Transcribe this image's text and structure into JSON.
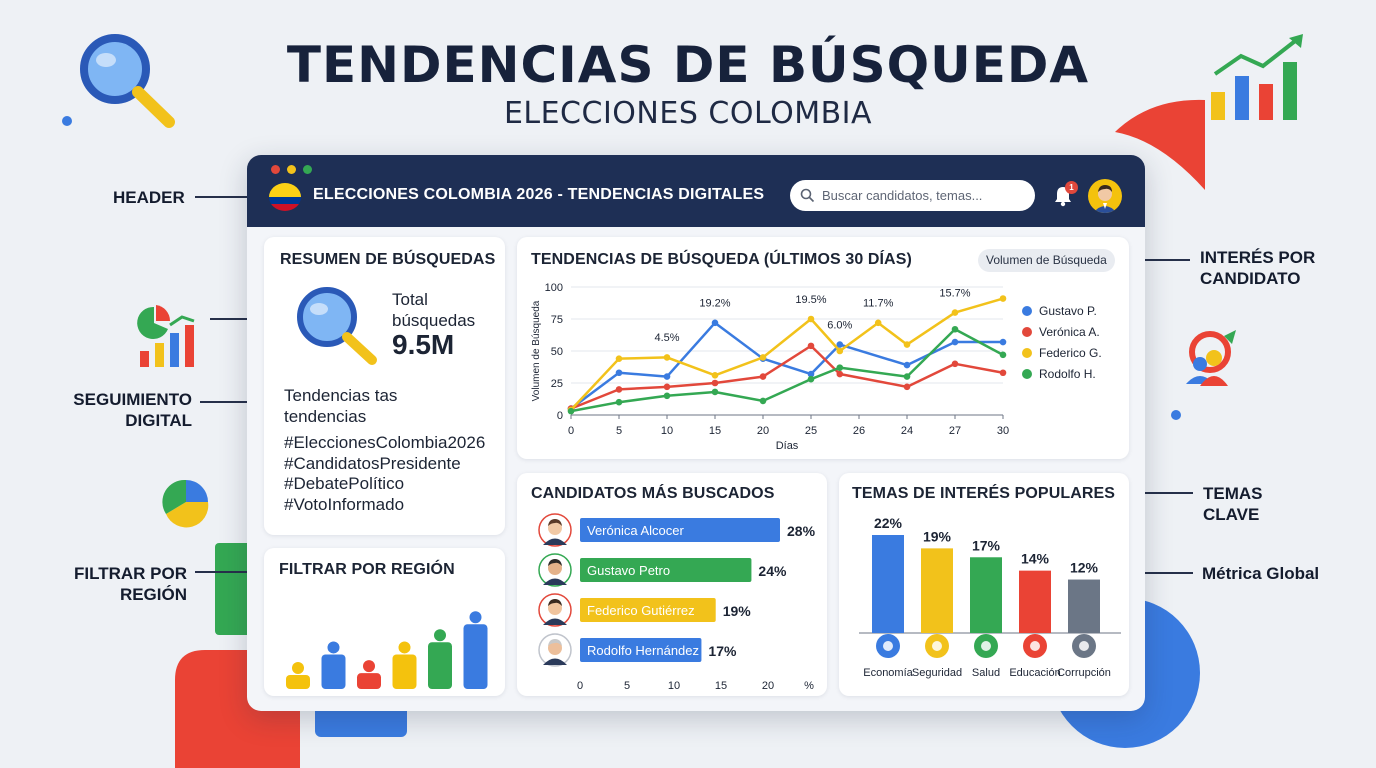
{
  "hero": {
    "title": "TENDENCIAS DE BÚSQUEDA",
    "subtitle": "ELECCIONES COLOMBIA"
  },
  "callouts": {
    "header": "HEADER",
    "seguimiento": [
      "SEGUIMIENTO",
      "DIGITAL"
    ],
    "filtrar": [
      "FILTRAR POR",
      "REGIÓN"
    ],
    "interes": [
      "INTERÉS POR",
      "CANDIDATO"
    ],
    "temas": [
      "TEMAS",
      "CLAVE"
    ],
    "metrica": "Métrica Global"
  },
  "header": {
    "title": "ELECCIONES COLOMBIA 2026 - TENDENCIAS DIGITALES",
    "search_placeholder": "Buscar candidatos, temas...",
    "notification_count": "1"
  },
  "summary": {
    "title": "RESUMEN DE BÚSQUEDAS",
    "total_label_1": "Total",
    "total_label_2": "búsquedas",
    "total_value": "9.5M",
    "trends_label_1": "Tendencias tas",
    "trends_label_2": "tendencias",
    "hashtags": [
      "#EleccionesColombia2026",
      "#CandidatosPresidente",
      "#DebatePolítico",
      "#VotoInformado"
    ]
  },
  "region": {
    "title": "FILTRAR POR REGIÓN",
    "bars": [
      {
        "level": 0.18,
        "color": "#f4c20d"
      },
      {
        "level": 0.48,
        "color": "#3a7be0"
      },
      {
        "level": 0.22,
        "color": "#ea4335"
      },
      {
        "level": 0.48,
        "color": "#f4c20d"
      },
      {
        "level": 0.65,
        "color": "#34a853"
      },
      {
        "level": 0.9,
        "color": "#3a7be0"
      }
    ]
  },
  "colors": {
    "blue": "#3a7be0",
    "red": "#e2483b",
    "yellow": "#f2c21b",
    "green": "#34a853",
    "gray": "#6b7686",
    "navy": "#1e2f55"
  },
  "chart_data": [
    {
      "type": "line",
      "title": "TENDENCIAS DE BÚSQUEDA (ÚLTIMOS 30 DÍAS)",
      "pill": "Volumen de Búsqueda",
      "xlabel": "Días",
      "ylabel": "Volumen de Búsqueda",
      "x": [
        0,
        5,
        10,
        15,
        20,
        25,
        30
      ],
      "x_ticks": [
        "0",
        "5",
        "10",
        "15",
        "20",
        "25",
        "26",
        "24",
        "27",
        "30"
      ],
      "ylim": [
        0,
        100
      ],
      "y_ticks": [
        0,
        25,
        50,
        75,
        100
      ],
      "legend_position": "right",
      "series": [
        {
          "name": "Gustavo P.",
          "color": "#3a7be0",
          "points": [
            [
              0,
              5
            ],
            [
              5,
              33
            ],
            [
              10,
              30
            ],
            [
              15,
              72
            ],
            [
              20,
              44
            ],
            [
              25,
              32
            ],
            [
              28,
              55
            ],
            [
              35,
              39
            ],
            [
              40,
              57
            ],
            [
              45,
              57
            ]
          ]
        },
        {
          "name": "Verónica A.",
          "color": "#e2483b",
          "points": [
            [
              0,
              5
            ],
            [
              5,
              20
            ],
            [
              10,
              22
            ],
            [
              15,
              25
            ],
            [
              20,
              30
            ],
            [
              25,
              54
            ],
            [
              28,
              32
            ],
            [
              35,
              22
            ],
            [
              40,
              40
            ],
            [
              45,
              33
            ]
          ]
        },
        {
          "name": "Federico G.",
          "color": "#f2c21b",
          "points": [
            [
              0,
              4
            ],
            [
              5,
              44
            ],
            [
              10,
              45
            ],
            [
              15,
              31
            ],
            [
              20,
              45
            ],
            [
              25,
              75
            ],
            [
              28,
              50
            ],
            [
              32,
              72
            ],
            [
              35,
              55
            ],
            [
              40,
              80
            ],
            [
              45,
              91
            ]
          ]
        },
        {
          "name": "Rodolfo H.",
          "color": "#34a853",
          "points": [
            [
              0,
              3
            ],
            [
              5,
              10
            ],
            [
              10,
              15
            ],
            [
              15,
              18
            ],
            [
              20,
              11
            ],
            [
              25,
              28
            ],
            [
              28,
              37
            ],
            [
              35,
              30
            ],
            [
              40,
              67
            ],
            [
              45,
              47
            ]
          ]
        }
      ],
      "annotations": [
        "4.5%",
        "19.2%",
        "19.5%",
        "11.7%",
        "6.0%",
        "15.7%"
      ]
    },
    {
      "type": "bar",
      "title": "CANDIDATOS MÁS BUSCADOS",
      "orientation": "horizontal",
      "categories": [
        "Verónica Alcocer",
        "Gustavo Petro",
        "Federico Gutiérrez",
        "Rodolfo Hernández"
      ],
      "values": [
        28,
        24,
        19,
        17
      ],
      "value_labels": [
        "28%",
        "24%",
        "19%",
        "17%"
      ],
      "colors": [
        "#3a7be0",
        "#34a853",
        "#f2c21b",
        "#3a7be0"
      ],
      "x_ticks": [
        "0",
        "5",
        "10",
        "15",
        "20",
        "%"
      ],
      "xlim": [
        0,
        28
      ]
    },
    {
      "type": "bar",
      "title": "TEMAS DE INTERÉS POPULARES",
      "categories": [
        "Economía",
        "Seguridad",
        "Salud",
        "Educación",
        "Corrupción"
      ],
      "values": [
        22,
        19,
        17,
        14,
        12
      ],
      "value_labels": [
        "22%",
        "19%",
        "17%",
        "14%",
        "12%"
      ],
      "colors": [
        "#3a7be0",
        "#f2c21b",
        "#34a853",
        "#ea4335",
        "#6b7686"
      ],
      "icons": [
        "chart-icon",
        "shield-icon",
        "heart-icon",
        "graduation-cap-icon",
        "money-icon"
      ],
      "ylim": [
        0,
        22
      ]
    }
  ]
}
